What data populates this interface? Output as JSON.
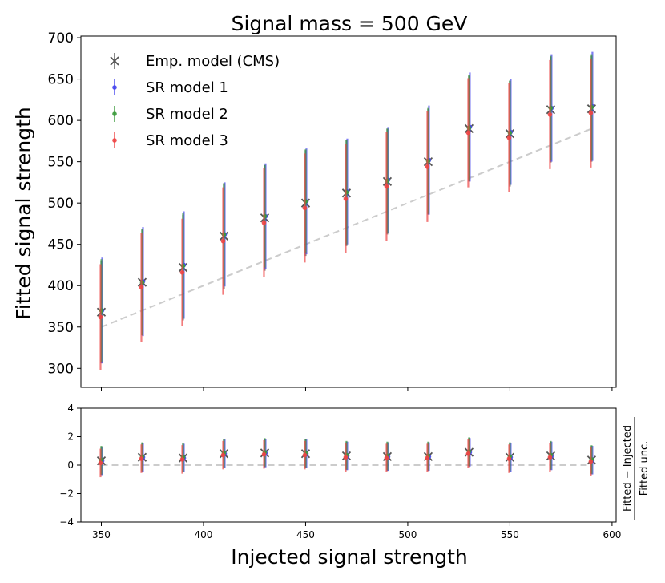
{
  "chart_data": [
    {
      "type": "scatter",
      "panel": "main",
      "title": "Signal mass = 500 GeV",
      "xlabel": "Injected signal strength",
      "ylabel": "Fitted signal strength",
      "xlim": [
        340,
        602
      ],
      "ylim": [
        277,
        702
      ],
      "x_ticks": [
        350,
        400,
        450,
        500,
        550,
        600
      ],
      "y_ticks": [
        300,
        350,
        400,
        450,
        500,
        550,
        600,
        650,
        700
      ],
      "x": [
        350,
        370,
        390,
        410,
        430,
        450,
        470,
        490,
        510,
        530,
        550,
        570,
        590
      ],
      "reference_line": {
        "style": "dashed",
        "color": "#cccccc",
        "from": [
          350,
          350
        ],
        "to": [
          590,
          590
        ]
      },
      "legend_position": "top-left",
      "series": [
        {
          "name": "Emp. model (CMS)",
          "marker": "x",
          "color": "#555555",
          "offset": 0,
          "values": [
            368,
            404,
            422,
            460,
            482,
            500,
            512,
            526,
            550,
            590,
            584,
            613,
            614
          ],
          "errors": [
            62,
            64,
            64,
            64,
            64,
            64,
            64,
            64,
            64,
            64,
            64,
            64,
            64
          ]
        },
        {
          "name": "SR model 1",
          "marker": "o",
          "color": "#4444ee",
          "offset": 1,
          "values": [
            370,
            405,
            425,
            462,
            484,
            502,
            514,
            528,
            552,
            592,
            586,
            615,
            617
          ],
          "errors": [
            64,
            66,
            65,
            63,
            64,
            64,
            64,
            64,
            66,
            66,
            64,
            65,
            66
          ]
        },
        {
          "name": "SR model 2",
          "marker": "o",
          "color": "#3a9a3a",
          "offset": 0,
          "values": [
            370,
            404,
            424,
            462,
            484,
            502,
            513,
            527,
            551,
            591,
            585,
            615,
            616
          ],
          "errors": [
            62,
            64,
            64,
            62,
            62,
            63,
            63,
            63,
            64,
            64,
            63,
            63,
            64
          ]
        },
        {
          "name": "SR model 3",
          "marker": "o",
          "color": "#ee4444",
          "offset": -1,
          "values": [
            362,
            398,
            416,
            454,
            476,
            494,
            505,
            520,
            544,
            585,
            579,
            607,
            609
          ],
          "errors": [
            64,
            66,
            65,
            65,
            66,
            66,
            66,
            66,
            67,
            66,
            66,
            66,
            66
          ]
        }
      ]
    },
    {
      "type": "scatter",
      "panel": "ratio",
      "xlabel": "Injected signal strength",
      "ylabel_numerator": "Fitted − Injected",
      "ylabel_denominator": "Fitted unc.",
      "xlim": [
        340,
        602
      ],
      "ylim": [
        -4,
        4
      ],
      "x_ticks": [
        350,
        400,
        450,
        500,
        550,
        600
      ],
      "y_ticks": [
        4,
        2,
        0,
        -2,
        -4
      ],
      "y_tick_labels": [
        "4",
        "2",
        "0",
        "−2",
        "−4"
      ],
      "reference_line": {
        "style": "dashed",
        "color": "#cccccc",
        "y": 0
      },
      "x": [
        350,
        370,
        390,
        410,
        430,
        450,
        470,
        490,
        510,
        530,
        550,
        570,
        590
      ],
      "series": [
        {
          "name": "Emp. model (CMS)",
          "color": "#555555",
          "values": [
            0.3,
            0.55,
            0.5,
            0.8,
            0.85,
            0.8,
            0.65,
            0.6,
            0.6,
            0.9,
            0.55,
            0.65,
            0.35
          ],
          "errors": [
            1,
            1,
            1,
            1,
            1,
            1,
            1,
            1,
            1,
            1,
            1,
            1,
            1
          ]
        },
        {
          "name": "SR model 1",
          "color": "#4444ee",
          "values": [
            0.3,
            0.55,
            0.5,
            0.8,
            0.85,
            0.8,
            0.65,
            0.6,
            0.6,
            0.9,
            0.55,
            0.65,
            0.35
          ],
          "errors": [
            1,
            1,
            1,
            1,
            1,
            1,
            1,
            1,
            1,
            1,
            1,
            1,
            1
          ]
        },
        {
          "name": "SR model 2",
          "color": "#3a9a3a",
          "values": [
            0.35,
            0.6,
            0.55,
            0.85,
            0.9,
            0.85,
            0.7,
            0.65,
            0.65,
            0.95,
            0.6,
            0.7,
            0.4
          ],
          "errors": [
            1,
            1,
            1,
            1,
            1,
            1,
            1,
            1,
            1,
            1,
            1,
            1,
            1
          ]
        },
        {
          "name": "SR model 3",
          "color": "#ee4444",
          "values": [
            0.15,
            0.45,
            0.4,
            0.7,
            0.75,
            0.7,
            0.55,
            0.5,
            0.5,
            0.8,
            0.45,
            0.55,
            0.25
          ],
          "errors": [
            1,
            1,
            1,
            1,
            1,
            1,
            1,
            1,
            1,
            1,
            1,
            1,
            1
          ]
        }
      ]
    }
  ]
}
